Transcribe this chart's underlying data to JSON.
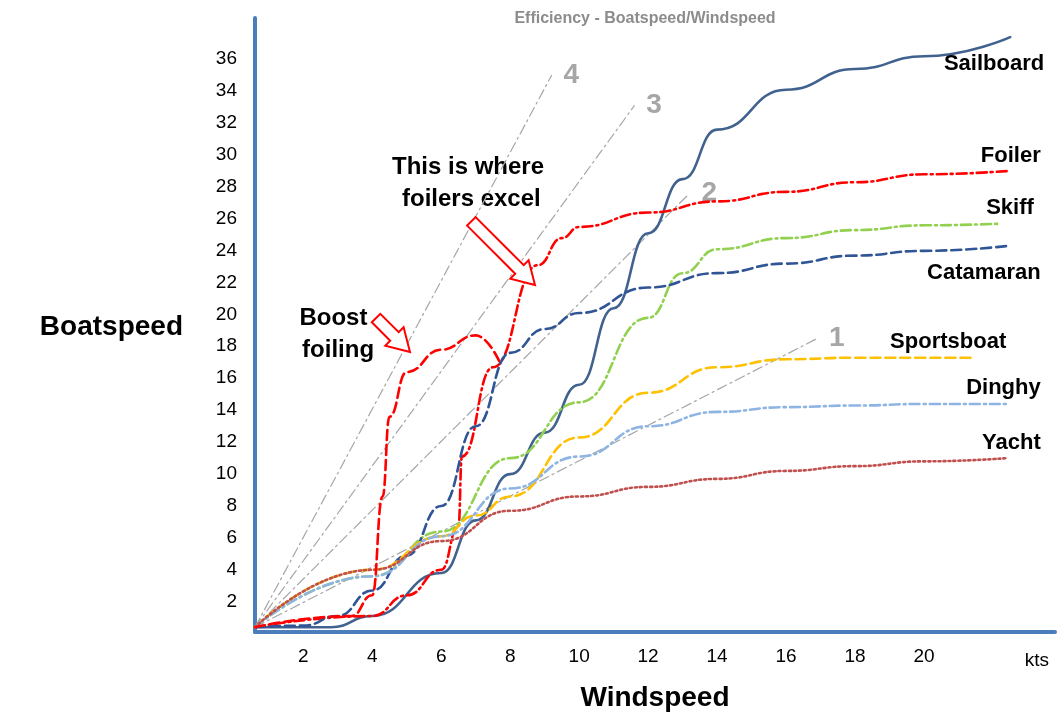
{
  "chart_data": {
    "type": "line",
    "title": "Efficiency - Boatspeed/Windspeed",
    "xlabel": "Windspeed",
    "ylabel": "Boatspeed",
    "xlim": [
      0.6,
      23.8
    ],
    "ylim": [
      0,
      38.5
    ],
    "xticks": [
      2,
      4,
      6,
      8,
      10,
      12,
      14,
      16,
      18,
      20
    ],
    "yticks": [
      2,
      4,
      6,
      8,
      10,
      12,
      14,
      16,
      18,
      20,
      22,
      24,
      26,
      28,
      30,
      32,
      34,
      36
    ],
    "grid": false,
    "legend": false,
    "marker": "none",
    "annotations": [
      "This is where foilers excel",
      "Boost foiling",
      "kts"
    ],
    "series": [
      {
        "name": "Sailboard",
        "color": "#41628f",
        "line_style": "solid",
        "x": [
          0.6,
          2.8,
          4,
          6,
          7,
          8,
          9,
          10,
          11,
          12,
          13,
          14,
          16,
          18,
          20,
          22.5
        ],
        "values": [
          0.3,
          0.3,
          1,
          3.7,
          7,
          9.9,
          12.5,
          15.5,
          20.3,
          25,
          28.4,
          31.5,
          34,
          35.3,
          36.1,
          37.3
        ]
      },
      {
        "name": "Foiler",
        "color": "#ff0000",
        "line_style": "dashdot",
        "x": [
          0.6,
          4,
          5,
          6,
          6.5,
          6.6,
          7.5,
          8.8,
          9.5,
          10,
          12,
          14,
          16,
          18,
          20,
          22.4
        ],
        "values": [
          0.3,
          1,
          2.3,
          3.9,
          6.6,
          11,
          16.6,
          23,
          24.7,
          25.4,
          26.3,
          27,
          27.6,
          28.2,
          28.7,
          28.9
        ]
      },
      {
        "name": "Skiff",
        "color": "#92d050",
        "line_style": "dashdot",
        "x": [
          0.6,
          4,
          6,
          8,
          10,
          12,
          13,
          14,
          16,
          18,
          20,
          22.2
        ],
        "values": [
          0.3,
          3.5,
          6.3,
          10.9,
          14.4,
          19.7,
          22.5,
          24,
          24.7,
          25.2,
          25.5,
          25.6
        ]
      },
      {
        "name": "Catamaran",
        "color": "#2f5597",
        "line_style": "dashed",
        "x": [
          0.6,
          2,
          3,
          4,
          5,
          6,
          7,
          8,
          9,
          10,
          12,
          14,
          16,
          18,
          20,
          22.4
        ],
        "values": [
          0.3,
          0.4,
          1,
          2.6,
          4.8,
          7.9,
          12.9,
          17.5,
          19,
          20,
          21.6,
          22.5,
          23.1,
          23.6,
          23.9,
          24.2
        ]
      },
      {
        "name": "Sportsboat",
        "color": "#ffc000",
        "line_style": "dashed",
        "x": [
          0.6,
          4,
          6,
          7,
          8,
          10,
          12,
          14,
          16,
          18,
          20,
          21.4
        ],
        "values": [
          0.3,
          3.9,
          6,
          7.3,
          8.5,
          12.2,
          15,
          16.6,
          17.1,
          17.2,
          17.2,
          17.2
        ]
      },
      {
        "name": "Dinghy",
        "color": "#8eb4e3",
        "line_style": "dashdot",
        "x": [
          0.6,
          4,
          6,
          8,
          10,
          12,
          14,
          16,
          18,
          20,
          22.4
        ],
        "values": [
          0.3,
          3.5,
          6,
          9,
          11,
          12.9,
          13.8,
          14.1,
          14.2,
          14.3,
          14.3
        ]
      },
      {
        "name": "Yacht",
        "color": "#c0504d",
        "line_style": "dotted",
        "x": [
          0.6,
          4,
          6,
          8,
          10,
          12,
          14,
          16,
          18,
          20,
          22.4
        ],
        "values": [
          0.3,
          3.9,
          5.7,
          7.6,
          8.5,
          9.1,
          9.6,
          10.1,
          10.4,
          10.7,
          10.9
        ]
      },
      {
        "color": "#ff0000",
        "line_style": "dashed",
        "x": [
          0.6,
          3.4,
          4,
          4.3,
          4.5,
          5,
          6,
          7,
          7.7
        ],
        "values": [
          0.3,
          1,
          2.3,
          8.5,
          13.5,
          16.3,
          17.7,
          18.6,
          16.9
        ]
      },
      {
        "name": "1",
        "color": "#a6a6a6",
        "line_style": "dashdot",
        "x": [
          0.6,
          16.9
        ],
        "values": [
          0.3,
          18.4
        ]
      },
      {
        "name": "2",
        "color": "#a6a6a6",
        "line_style": "dashdot",
        "x": [
          0.6,
          13.2
        ],
        "values": [
          0.3,
          27.5
        ]
      },
      {
        "name": "3",
        "color": "#a6a6a6",
        "line_style": "dashdot",
        "x": [
          0.6,
          11.6
        ],
        "values": [
          0.3,
          33
        ]
      },
      {
        "name": "4",
        "color": "#a6a6a6",
        "line_style": "dashdot",
        "x": [
          0.6,
          9.2
        ],
        "values": [
          0.3,
          34.9
        ]
      }
    ]
  }
}
